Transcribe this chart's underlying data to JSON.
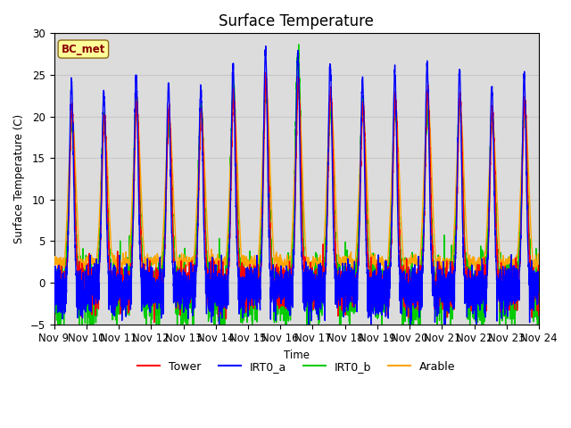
{
  "title": "Surface Temperature",
  "ylabel": "Surface Temperature (C)",
  "xlabel": "Time",
  "ylim": [
    -5,
    30
  ],
  "annotation_text": "BC_met",
  "annotation_color": "#8B0000",
  "annotation_bg": "#FFFF99",
  "x_tick_labels": [
    "Nov 9",
    "Nov 10",
    "Nov 11",
    "Nov 12",
    "Nov 13",
    "Nov 14",
    "Nov 15",
    "Nov 16",
    "Nov 17",
    "Nov 18",
    "Nov 19",
    "Nov 20",
    "Nov 21",
    "Nov 22",
    "Nov 23",
    "Nov 24"
  ],
  "colors": {
    "Tower": "#FF0000",
    "IRT0_a": "#0000FF",
    "IRT0_b": "#00CC00",
    "Arable": "#FFA500"
  },
  "line_widths": {
    "Tower": 1.0,
    "IRT0_a": 1.0,
    "IRT0_b": 1.0,
    "Arable": 1.0
  },
  "plot_bg": "#DCDCDC",
  "n_days": 15,
  "n_pts_per_day": 288
}
